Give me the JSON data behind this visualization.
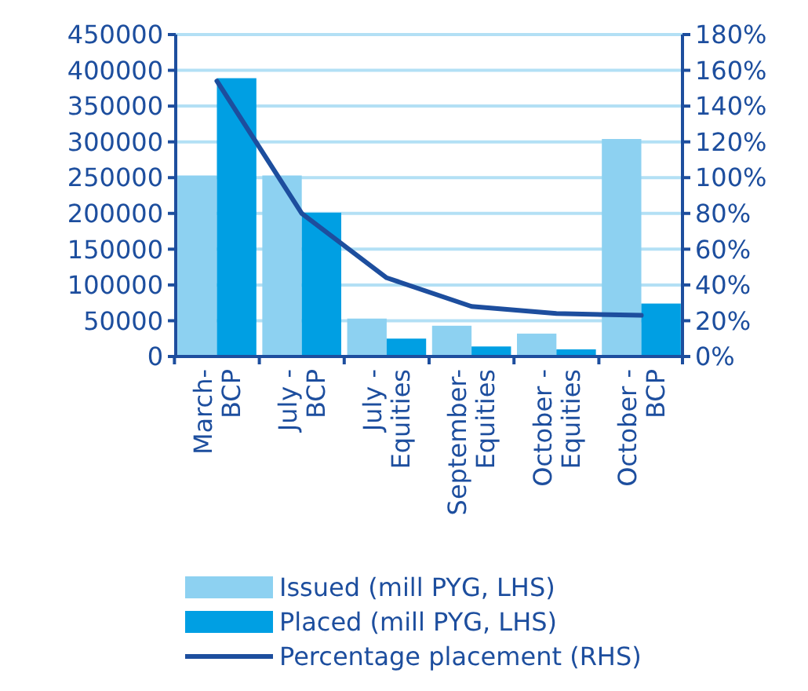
{
  "chart_data": {
    "type": "bar",
    "categories": [
      "March-\nBCP",
      "July -\nBCP",
      "July -\nEquities",
      "September-\nEquities",
      "October -\nEquities",
      "October -\nBCP"
    ],
    "series": [
      {
        "name": "Issued (mill PYG, LHS)",
        "color": "#8dd1f1",
        "values": [
          253000,
          253000,
          53000,
          43000,
          32000,
          304000
        ]
      },
      {
        "name": "Placed (mill PYG, LHS)",
        "color": "#009fe3",
        "values": [
          389000,
          201000,
          25000,
          14000,
          10000,
          74000
        ]
      },
      {
        "name": "Percentage placement (RHS)",
        "type": "line",
        "axis": "y2",
        "color": "#1d4e9e",
        "values": [
          154,
          80,
          44,
          28,
          24,
          23
        ]
      }
    ],
    "ylim": [
      0,
      450000
    ],
    "yticks": [
      0,
      50000,
      100000,
      150000,
      200000,
      250000,
      300000,
      350000,
      400000,
      450000
    ],
    "y2lim": [
      0,
      180
    ],
    "y2ticks": [
      {
        "value": 0,
        "label": "0%"
      },
      {
        "value": 20,
        "label": "20%"
      },
      {
        "value": 40,
        "label": "40%"
      },
      {
        "value": 60,
        "label": "60%"
      },
      {
        "value": 80,
        "label": "80%"
      },
      {
        "value": 100,
        "label": "100%"
      },
      {
        "value": 120,
        "label": "120%"
      },
      {
        "value": 140,
        "label": "140%"
      },
      {
        "value": 160,
        "label": "160%"
      },
      {
        "value": 180,
        "label": "180%"
      }
    ],
    "grid": "y",
    "legend": "bottom",
    "marker": "none"
  }
}
